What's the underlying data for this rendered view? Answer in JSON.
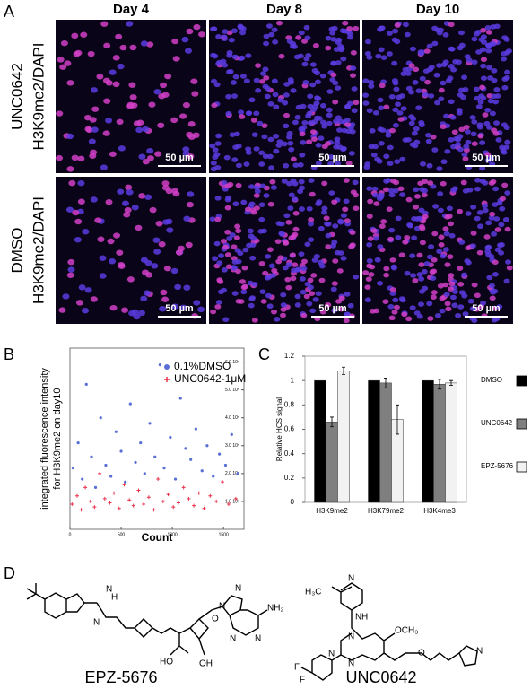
{
  "figure_labels": [
    "A",
    "B",
    "C",
    "D"
  ],
  "panel_a": {
    "columns": [
      "Day 4",
      "Day 8",
      "Day 10"
    ],
    "rows": [
      {
        "label": "UNC0642",
        "stain": "H3K9me2/DAPI"
      },
      {
        "label": "DMSO",
        "stain": "H3K9me2/DAPI"
      }
    ],
    "scale_bar": "50 µm"
  },
  "chart_data": [
    {
      "type": "scatter",
      "xlabel": "Count",
      "ylabel": [
        "integrated fluorescence intensity",
        "for H3K9me2 on day10"
      ],
      "xlim": [
        0,
        1700
      ],
      "xticks": [
        0,
        500,
        1000,
        1500
      ],
      "ylim": [
        0,
        650000
      ],
      "yticks": [
        {
          "value": 100000,
          "label": "1.0 10⁵"
        },
        {
          "value": 200000,
          "label": "2.0 10⁵"
        },
        {
          "value": 300000,
          "label": "3.0 10⁵"
        },
        {
          "value": 400000,
          "label": "4.0 10⁵"
        },
        {
          "value": 500000,
          "label": "5.0 10⁵"
        },
        {
          "value": 600000,
          "label": "6.0 10⁵"
        }
      ],
      "series": [
        {
          "name": "0.1%DMSO",
          "color": "#5a6fd6",
          "marker": "circle",
          "x": [
            30,
            80,
            120,
            160,
            210,
            250,
            300,
            350,
            400,
            450,
            500,
            540,
            590,
            640,
            690,
            730,
            780,
            830,
            880,
            920,
            980,
            1030,
            1080,
            1130,
            1180,
            1230,
            1290,
            1340,
            1400,
            1460,
            1520,
            1580,
            1640
          ],
          "values": [
            220000,
            310000,
            180000,
            520000,
            260000,
            150000,
            400000,
            230000,
            190000,
            350000,
            280000,
            170000,
            450000,
            240000,
            310000,
            200000,
            380000,
            260000,
            590000,
            220000,
            330000,
            180000,
            470000,
            290000,
            250000,
            360000,
            210000,
            300000,
            190000,
            270000,
            230000,
            340000,
            200000
          ]
        },
        {
          "name": "UNC0642-1μM",
          "color": "#e8324a",
          "marker": "plus",
          "x": [
            20,
            70,
            110,
            150,
            200,
            240,
            290,
            340,
            390,
            430,
            480,
            530,
            580,
            620,
            670,
            720,
            770,
            820,
            860,
            910,
            960,
            1010,
            1060,
            1110,
            1160,
            1210,
            1260,
            1310,
            1370,
            1430,
            1490,
            1550,
            1620
          ],
          "values": [
            90000,
            120000,
            70000,
            150000,
            100000,
            80000,
            200000,
            110000,
            95000,
            130000,
            75000,
            160000,
            105000,
            85000,
            140000,
            90000,
            115000,
            70000,
            180000,
            100000,
            125000,
            80000,
            95000,
            150000,
            110000,
            85000,
            130000,
            75000,
            120000,
            100000,
            170000,
            90000,
            110000
          ]
        }
      ]
    },
    {
      "type": "bar",
      "ylabel": "Relative HCS signal",
      "categories": [
        "H3K9me2",
        "H3K79me2",
        "H3K4me3"
      ],
      "ylim": [
        0,
        1.2
      ],
      "yticks": [
        0,
        0.2,
        0.4,
        0.6,
        0.8,
        1,
        1.2
      ],
      "series": [
        {
          "name": "DMSO",
          "color": "#000000",
          "values": [
            1,
            1,
            1
          ],
          "errors": [
            0,
            0,
            0
          ]
        },
        {
          "name": "UNC0642",
          "color": "#7f7f7f",
          "values": [
            0.66,
            0.98,
            0.97
          ],
          "errors": [
            0.04,
            0.04,
            0.04
          ]
        },
        {
          "name": "EPZ-5676",
          "color": "#f2f2f2",
          "values": [
            1.08,
            0.68,
            0.98
          ],
          "errors": [
            0.03,
            0.12,
            0.02
          ]
        }
      ]
    }
  ],
  "panel_d": {
    "structures": [
      {
        "name": "EPZ-5676",
        "atoms": [
          "N",
          "H",
          "N",
          "O",
          "HO",
          "OH",
          "N",
          "N",
          "N",
          "N",
          "NH₂"
        ]
      },
      {
        "name": "UNC0642",
        "atoms": [
          "H₃C",
          "N",
          "N",
          "H",
          "OCH₃",
          "N",
          "N",
          "N",
          "O",
          "N",
          "F",
          "F"
        ]
      }
    ]
  }
}
